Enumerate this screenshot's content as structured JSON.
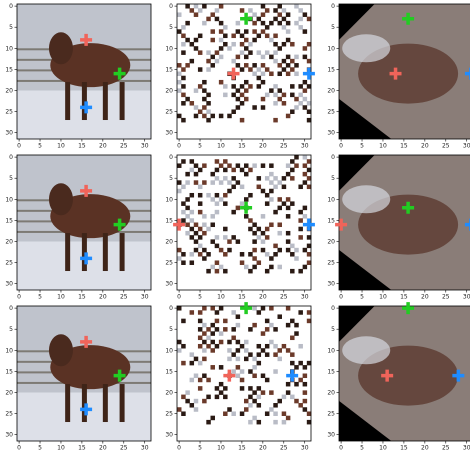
{
  "chart_data": [
    {
      "type": "image",
      "xlim": [
        -0.5,
        31.5
      ],
      "ylim": [
        31.5,
        -0.5
      ],
      "xticks": [
        0,
        5,
        10,
        15,
        20,
        25,
        30
      ],
      "yticks": [
        0,
        5,
        10,
        15,
        20,
        25,
        30
      ],
      "points": {
        "x": [
          16,
          24,
          16
        ],
        "y": [
          8,
          16,
          24
        ],
        "colors": [
          "#f0645a",
          "#22cc22",
          "#1f8cff"
        ]
      }
    },
    {
      "type": "image",
      "xlim": [
        -0.5,
        31.5
      ],
      "ylim": [
        31.5,
        -0.5
      ],
      "xticks": [
        0,
        5,
        10,
        15,
        20,
        25,
        30
      ],
      "yticks": [
        0,
        5,
        10,
        15,
        20,
        25,
        30
      ],
      "points": {
        "x": [
          13,
          16,
          31
        ],
        "y": [
          16,
          3,
          16
        ],
        "colors": [
          "#f0645a",
          "#22cc22",
          "#1f8cff"
        ]
      }
    },
    {
      "type": "image",
      "xlim": [
        -0.5,
        31.5
      ],
      "ylim": [
        31.5,
        -0.5
      ],
      "xticks": [
        0,
        5,
        10,
        15,
        20,
        25,
        30
      ],
      "yticks": [
        0,
        5,
        10,
        15,
        20,
        25,
        30
      ],
      "points": {
        "x": [
          13,
          16,
          31
        ],
        "y": [
          16,
          3,
          16
        ],
        "colors": [
          "#f0645a",
          "#22cc22",
          "#1f8cff"
        ]
      }
    },
    {
      "type": "image",
      "xlim": [
        -0.5,
        31.5
      ],
      "ylim": [
        31.5,
        -0.5
      ],
      "xticks": [
        0,
        5,
        10,
        15,
        20,
        25,
        30
      ],
      "yticks": [
        0,
        5,
        10,
        15,
        20,
        25,
        30
      ],
      "points": {
        "x": [
          16,
          24,
          16
        ],
        "y": [
          8,
          16,
          24
        ],
        "colors": [
          "#f0645a",
          "#22cc22",
          "#1f8cff"
        ]
      }
    },
    {
      "type": "image",
      "xlim": [
        -0.5,
        31.5
      ],
      "ylim": [
        31.5,
        -0.5
      ],
      "xticks": [
        0,
        5,
        10,
        15,
        20,
        25,
        30
      ],
      "yticks": [
        0,
        5,
        10,
        15,
        20,
        25,
        30
      ],
      "points": {
        "x": [
          0,
          16,
          31
        ],
        "y": [
          16,
          12,
          16
        ],
        "colors": [
          "#f0645a",
          "#22cc22",
          "#1f8cff"
        ]
      }
    },
    {
      "type": "image",
      "xlim": [
        -0.5,
        31.5
      ],
      "ylim": [
        31.5,
        -0.5
      ],
      "xticks": [
        0,
        5,
        10,
        15,
        20,
        25,
        30
      ],
      "yticks": [
        0,
        5,
        10,
        15,
        20,
        25,
        30
      ],
      "points": {
        "x": [
          0,
          16,
          31
        ],
        "y": [
          16,
          12,
          16
        ],
        "colors": [
          "#f0645a",
          "#22cc22",
          "#1f8cff"
        ]
      }
    },
    {
      "type": "image",
      "xlim": [
        -0.5,
        31.5
      ],
      "ylim": [
        31.5,
        -0.5
      ],
      "xticks": [
        0,
        5,
        10,
        15,
        20,
        25,
        30
      ],
      "yticks": [
        0,
        5,
        10,
        15,
        20,
        25,
        30
      ],
      "points": {
        "x": [
          16,
          24,
          16
        ],
        "y": [
          8,
          16,
          24
        ],
        "colors": [
          "#f0645a",
          "#22cc22",
          "#1f8cff"
        ]
      }
    },
    {
      "type": "image",
      "xlim": [
        -0.5,
        31.5
      ],
      "ylim": [
        31.5,
        -0.5
      ],
      "xticks": [
        0,
        5,
        10,
        15,
        20,
        25,
        30
      ],
      "yticks": [
        0,
        5,
        10,
        15,
        20,
        25,
        30
      ],
      "points": {
        "x": [
          12,
          16,
          27
        ],
        "y": [
          16,
          0,
          16
        ],
        "colors": [
          "#f0645a",
          "#22cc22",
          "#1f8cff"
        ]
      }
    },
    {
      "type": "image",
      "xlim": [
        -0.5,
        31.5
      ],
      "ylim": [
        31.5,
        -0.5
      ],
      "xticks": [
        0,
        5,
        10,
        15,
        20,
        25,
        30
      ],
      "yticks": [
        0,
        5,
        10,
        15,
        20,
        25,
        30
      ],
      "points": {
        "x": [
          11,
          16,
          28
        ],
        "y": [
          16,
          0,
          16
        ],
        "colors": [
          "#f0645a",
          "#22cc22",
          "#1f8cff"
        ]
      }
    }
  ]
}
